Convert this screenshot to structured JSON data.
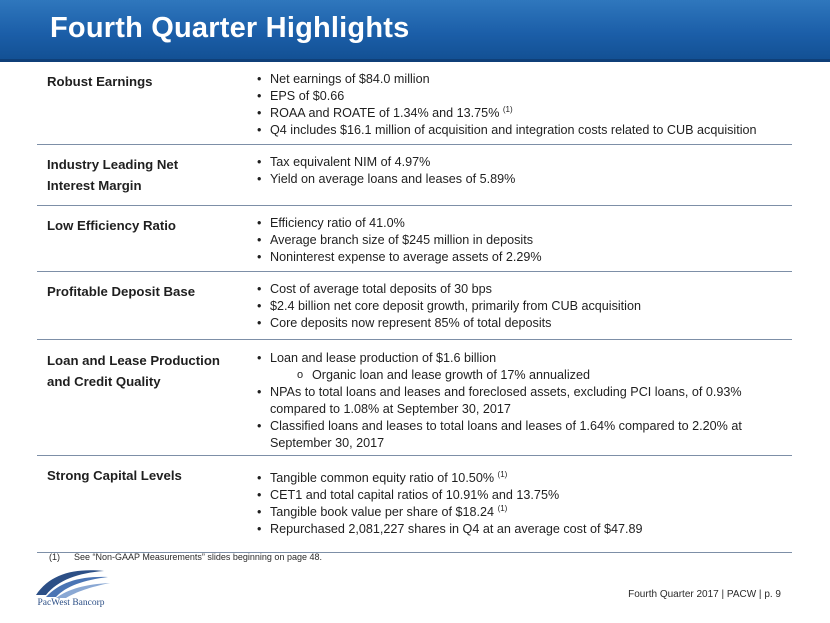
{
  "slide": {
    "title": "Fourth Quarter Highlights",
    "footer": "Fourth Quarter 2017 | PACW | p. 9",
    "footnote_num": "(1)",
    "footnote_text": "See “Non-GAAP Measurements” slides beginning on page 48.",
    "logo_text": "PacWest Bancorp"
  },
  "rows": [
    {
      "label": "Robust Earnings",
      "bullets": [
        "Net earnings of $84.0 million",
        "EPS of $0.66",
        "ROAA and ROATE of 1.34% and 13.75%",
        "Q4 includes $16.1 million of acquisition and integration costs related to CUB acquisition"
      ],
      "sup": "(1)"
    },
    {
      "label_1": "Industry Leading Net",
      "label_2": "Interest Margin",
      "bullets": [
        "Tax equivalent NIM of 4.97%",
        "Yield on average loans and leases of 5.89%"
      ]
    },
    {
      "label": "Low Efficiency Ratio",
      "bullets": [
        "Efficiency ratio of 41.0%",
        "Average branch size of $245 million in deposits",
        "Noninterest expense to average assets of 2.29%"
      ]
    },
    {
      "label": "Profitable Deposit Base",
      "bullets": [
        "Cost of average total deposits of 30 bps",
        "$2.4 billion net core deposit growth, primarily from CUB acquisition",
        "Core deposits now represent 85% of total deposits"
      ]
    },
    {
      "label_1": "Loan and Lease Production",
      "label_2": "and Credit Quality",
      "bullets": [
        "Loan and lease production of $1.6 billion",
        "Organic loan and lease growth of 17% annualized",
        "NPAs to total loans and leases and foreclosed assets, excluding PCI loans, of 0.93%",
        "compared to 1.08% at September 30, 2017",
        "Classified loans and leases to total loans and leases of 1.64% compared to 2.20% at",
        "September 30, 2017"
      ]
    },
    {
      "label": "Strong Capital Levels",
      "bullets": [
        "Tangible common equity ratio of 10.50%",
        "CET1 and total capital ratios of 10.91% and 13.75%",
        "Tangible book value per share of $18.24",
        "Repurchased 2,081,227 shares in Q4 at an average cost of $47.89"
      ],
      "sup": "(1)"
    }
  ]
}
